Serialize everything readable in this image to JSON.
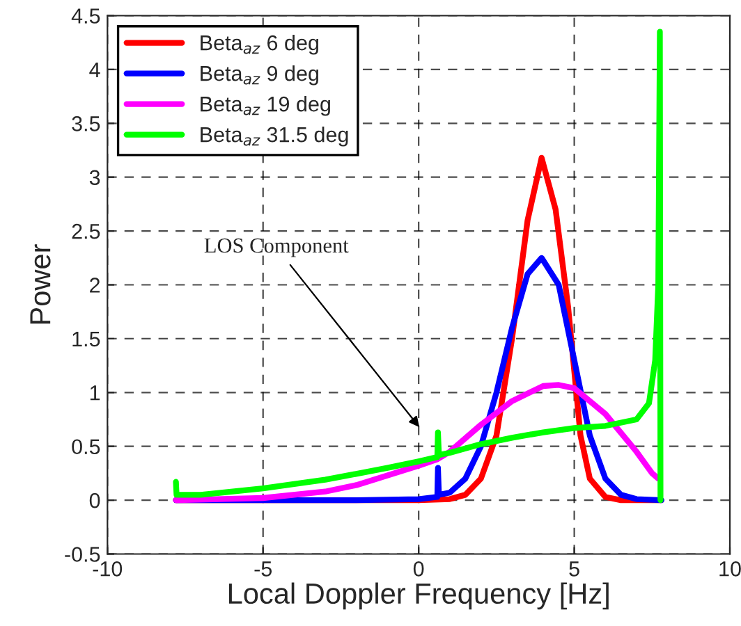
{
  "chart_data": {
    "type": "line",
    "xlabel": "Local Doppler Frequency [Hz]",
    "ylabel": "Power",
    "xlim": [
      -10,
      10
    ],
    "xticks": [
      -10,
      -5,
      0,
      5,
      10
    ],
    "ylim": [
      -0.5,
      4.5
    ],
    "yticks": [
      -0.5,
      0,
      0.5,
      1,
      1.5,
      2,
      2.5,
      3,
      3.5,
      4,
      4.5
    ],
    "grid": true,
    "legend": "top left",
    "marker": "none",
    "line_style": "solid",
    "annotations": [
      "LOS Component"
    ],
    "series": [
      {
        "name": "Beta$_{az}$ 6 deg",
        "color": "#ff0000",
        "x": [
          -7.8,
          0,
          1,
          1.5,
          2,
          2.5,
          3,
          3.5,
          3.95,
          4.4,
          4.8,
          5.2,
          5.5,
          6,
          6.5,
          7.8
        ],
        "values": [
          0,
          0,
          0.01,
          0.05,
          0.2,
          0.6,
          1.5,
          2.6,
          3.18,
          2.7,
          1.8,
          0.6,
          0.2,
          0.03,
          0,
          0
        ]
      },
      {
        "name": "Beta$_{az}$ 9 deg",
        "color": "#0000ff",
        "x": [
          -7.8,
          -2,
          0,
          0.6,
          0.62,
          0.65,
          1,
          1.5,
          2,
          2.5,
          3,
          3.5,
          3.95,
          4.5,
          5,
          5.5,
          6,
          6.5,
          7,
          7.8
        ],
        "values": [
          0,
          0,
          0.01,
          0.03,
          0.3,
          0.05,
          0.07,
          0.2,
          0.5,
          1.0,
          1.6,
          2.1,
          2.25,
          2.0,
          1.3,
          0.6,
          0.2,
          0.05,
          0.01,
          0
        ]
      },
      {
        "name": "Beta$_{az}$ 19 deg",
        "color": "#ff00ff",
        "x": [
          -7.8,
          -5,
          -3,
          -2,
          -1,
          0,
          0.6,
          1,
          2,
          3,
          4,
          4.5,
          5,
          6,
          7,
          7.5,
          7.7
        ],
        "values": [
          0,
          0.02,
          0.08,
          0.14,
          0.23,
          0.32,
          0.38,
          0.45,
          0.7,
          0.92,
          1.06,
          1.07,
          1.04,
          0.8,
          0.45,
          0.25,
          0.2
        ]
      },
      {
        "name": "Beta$_{az}$ 31.5 deg",
        "color": "#00ff00",
        "x": [
          -7.8,
          -7.78,
          -7,
          -5,
          -3,
          -1,
          0,
          0.6,
          0.62,
          0.65,
          1,
          2,
          3,
          4,
          5,
          6,
          7,
          7.4,
          7.6,
          7.7,
          7.75,
          7.77
        ],
        "values": [
          0.17,
          0.05,
          0.05,
          0.11,
          0.19,
          0.3,
          0.36,
          0.4,
          0.63,
          0.42,
          0.44,
          0.52,
          0.58,
          0.63,
          0.67,
          0.69,
          0.75,
          0.9,
          1.3,
          2.0,
          4.35,
          0
        ]
      }
    ]
  }
}
